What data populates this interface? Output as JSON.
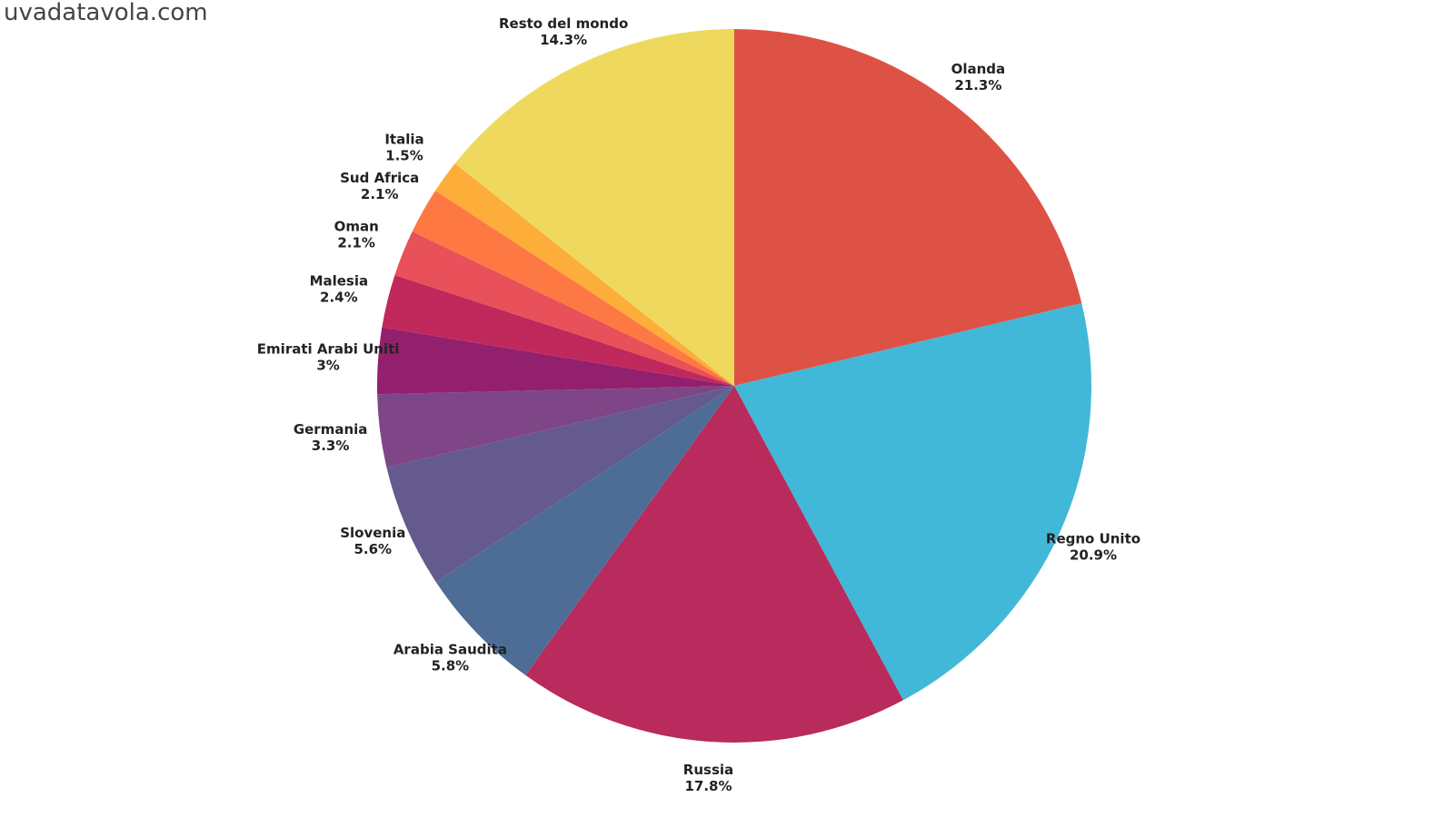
{
  "logo": "uvadatavola.com",
  "chart_data": {
    "type": "pie",
    "categories": [
      "Olanda",
      "Regno Unito",
      "Russia",
      "Arabia Saudita",
      "Slovenia",
      "Germania",
      "Emirati Arabi Uniti",
      "Malesia",
      "Oman",
      "Sud Africa",
      "Italia",
      "Resto del mondo"
    ],
    "values": [
      21.3,
      20.9,
      17.8,
      5.8,
      5.6,
      3.3,
      3,
      2.4,
      2.1,
      2.1,
      1.5,
      14.3
    ],
    "value_labels": [
      "21.3%",
      "20.9%",
      "17.8%",
      "5.8%",
      "5.6%",
      "3.3%",
      "3%",
      "2.4%",
      "2.1%",
      "2.1%",
      "1.5%",
      "14.3%"
    ],
    "colors": [
      "#de5246",
      "#42b8d8",
      "#b82b5c",
      "#4d6d96",
      "#645a8e",
      "#7e4686",
      "#92206e",
      "#c0285c",
      "#e8505a",
      "#fd7843",
      "#fdad3a",
      "#eed95e"
    ]
  }
}
